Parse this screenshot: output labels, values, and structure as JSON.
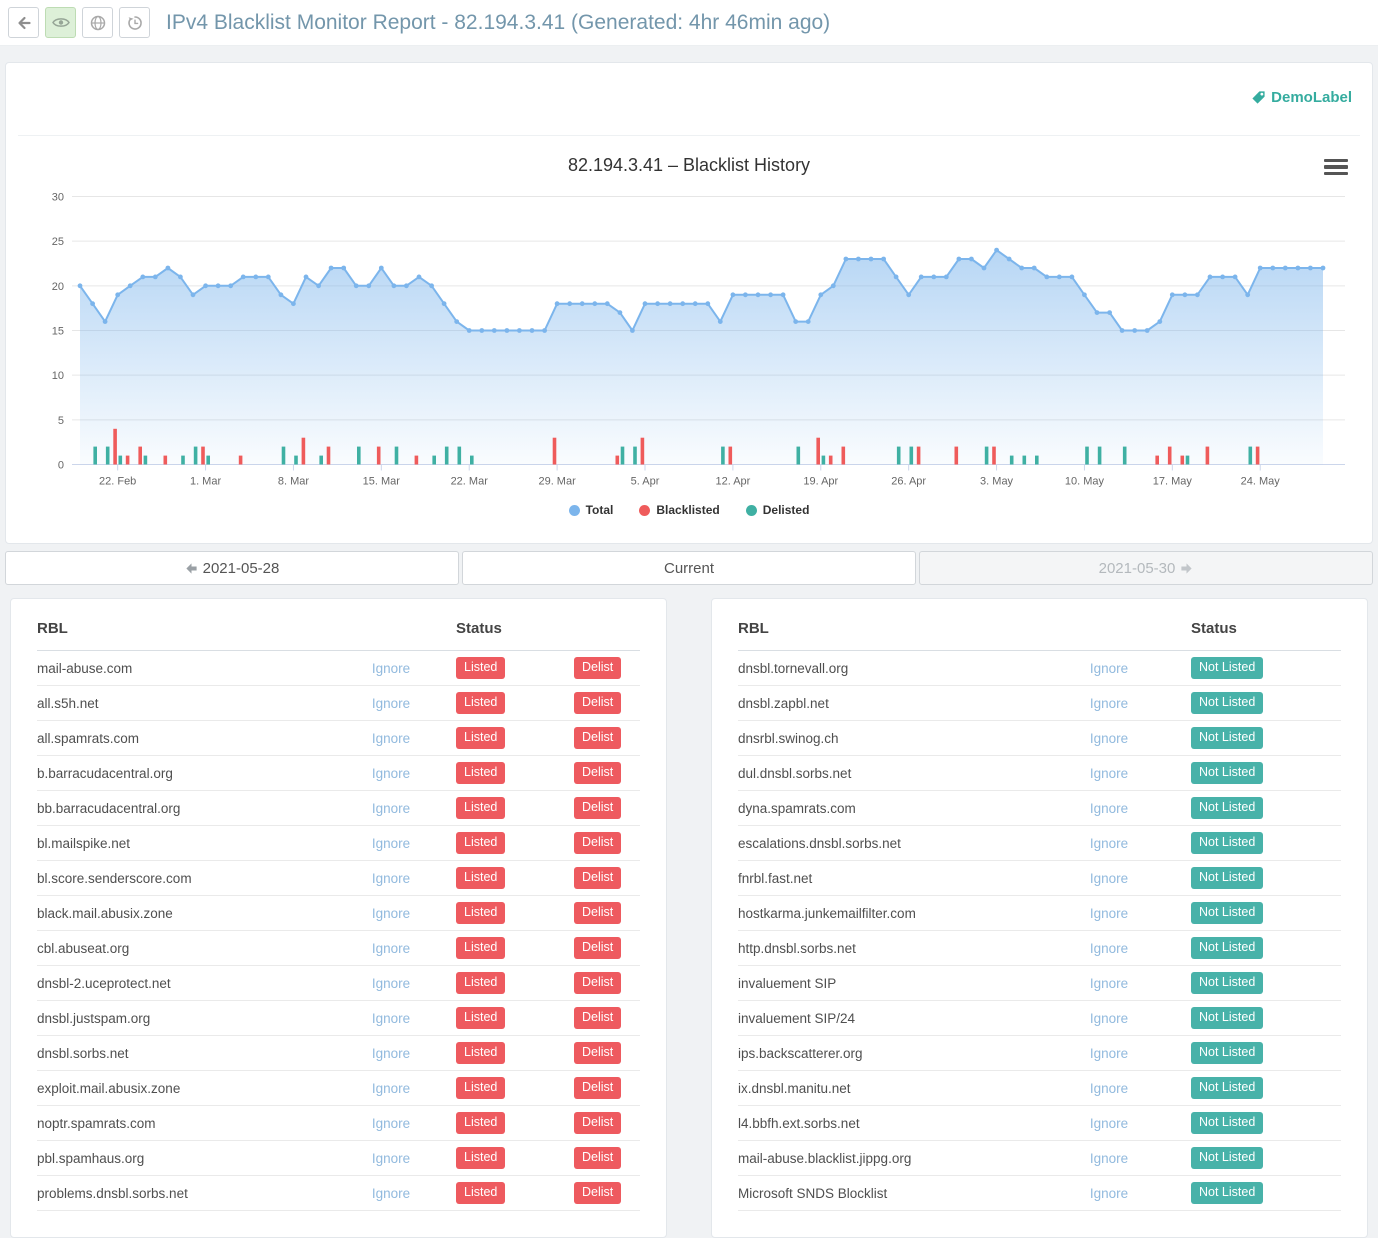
{
  "header": {
    "title": "IPv4 Blacklist Monitor Report - 82.194.3.41 (Generated: 4hr 46min ago)",
    "toolbar_buttons": [
      {
        "name": "back",
        "icon": "arrow-left-icon"
      },
      {
        "name": "view-report",
        "icon": "eye-icon",
        "active": true
      },
      {
        "name": "public-link",
        "icon": "globe-icon"
      },
      {
        "name": "history",
        "icon": "history-icon"
      }
    ]
  },
  "report_label": "DemoLabel",
  "chart_data": {
    "type": "area",
    "title": "82.194.3.41 – Blacklist History",
    "ylim": [
      0,
      30
    ],
    "y_ticks": [
      0,
      5,
      10,
      15,
      20,
      25,
      30
    ],
    "grid": "horizontal",
    "legend_position": "bottom",
    "x_tick_labels": [
      "22. Feb",
      "1. Mar",
      "8. Mar",
      "15. Mar",
      "22. Mar",
      "29. Mar",
      "5. Apr",
      "12. Apr",
      "19. Apr",
      "26. Apr",
      "3. May",
      "10. May",
      "17. May",
      "24. May"
    ],
    "x_tick_day_indices": [
      3,
      10,
      17,
      24,
      31,
      38,
      45,
      52,
      59,
      66,
      73,
      80,
      87,
      94
    ],
    "series": [
      {
        "name": "Total",
        "type": "area",
        "color": "#7cb5ec",
        "values": [
          20,
          18,
          16,
          19,
          20,
          21,
          21,
          22,
          21,
          19,
          20,
          20,
          20,
          21,
          21,
          21,
          19,
          18,
          21,
          20,
          22,
          22,
          20,
          20,
          22,
          20,
          20,
          21,
          20,
          18,
          16,
          15,
          15,
          15,
          15,
          15,
          15,
          15,
          18,
          18,
          18,
          18,
          18,
          17,
          15,
          18,
          18,
          18,
          18,
          18,
          18,
          16,
          19,
          19,
          19,
          19,
          19,
          16,
          16,
          19,
          20,
          23,
          23,
          23,
          23,
          21,
          19,
          21,
          21,
          21,
          23,
          23,
          22,
          24,
          23,
          22,
          22,
          21,
          21,
          21,
          19,
          17,
          17,
          15,
          15,
          15,
          16,
          19,
          19,
          19,
          21,
          21,
          21,
          19,
          22,
          22,
          22,
          22,
          22,
          22
        ]
      },
      {
        "name": "Blacklisted",
        "type": "column",
        "color": "#ef5b5b",
        "points": [
          [
            3,
            4
          ],
          [
            4,
            1
          ],
          [
            5,
            2
          ],
          [
            7,
            1
          ],
          [
            10,
            2
          ],
          [
            13,
            1
          ],
          [
            18,
            3
          ],
          [
            20,
            2
          ],
          [
            24,
            2
          ],
          [
            27,
            1
          ],
          [
            38,
            3
          ],
          [
            43,
            1
          ],
          [
            45,
            3
          ],
          [
            52,
            2
          ],
          [
            59,
            3
          ],
          [
            60,
            1
          ],
          [
            61,
            2
          ],
          [
            67,
            2
          ],
          [
            70,
            2
          ],
          [
            73,
            2
          ],
          [
            86,
            1
          ],
          [
            87,
            2
          ],
          [
            88,
            1
          ],
          [
            90,
            2
          ],
          [
            94,
            2
          ]
        ]
      },
      {
        "name": "Delisted",
        "type": "column",
        "color": "#3fb0a3",
        "points": [
          [
            1,
            2
          ],
          [
            2,
            2
          ],
          [
            3,
            1
          ],
          [
            5,
            1
          ],
          [
            8,
            1
          ],
          [
            9,
            2
          ],
          [
            10,
            1
          ],
          [
            16,
            2
          ],
          [
            17,
            1
          ],
          [
            19,
            1
          ],
          [
            22,
            2
          ],
          [
            25,
            2
          ],
          [
            28,
            1
          ],
          [
            29,
            2
          ],
          [
            30,
            2
          ],
          [
            31,
            1
          ],
          [
            43,
            2
          ],
          [
            44,
            2
          ],
          [
            51,
            2
          ],
          [
            57,
            2
          ],
          [
            59,
            1
          ],
          [
            65,
            2
          ],
          [
            66,
            2
          ],
          [
            72,
            2
          ],
          [
            74,
            1
          ],
          [
            75,
            1
          ],
          [
            76,
            1
          ],
          [
            80,
            2
          ],
          [
            81,
            2
          ],
          [
            83,
            2
          ],
          [
            88,
            1
          ],
          [
            93,
            2
          ]
        ]
      }
    ]
  },
  "date_nav": {
    "prev_label": "2021-05-28",
    "current_label": "Current",
    "next_label": "2021-05-30"
  },
  "tables": {
    "left": {
      "rbl_header": "RBL",
      "status_header": "Status",
      "ignore_label": "Ignore",
      "status_label": "Listed",
      "action_label": "Delist",
      "rows": [
        "mail-abuse.com",
        "all.s5h.net",
        "all.spamrats.com",
        "b.barracudacentral.org",
        "bb.barracudacentral.org",
        "bl.mailspike.net",
        "bl.score.senderscore.com",
        "black.mail.abusix.zone",
        "cbl.abuseat.org",
        "dnsbl-2.uceprotect.net",
        "dnsbl.justspam.org",
        "dnsbl.sorbs.net",
        "exploit.mail.abusix.zone",
        "noptr.spamrats.com",
        "pbl.spamhaus.org",
        "problems.dnsbl.sorbs.net"
      ]
    },
    "right": {
      "rbl_header": "RBL",
      "status_header": "Status",
      "ignore_label": "Ignore",
      "status_label": "Not Listed",
      "rows": [
        "dnsbl.tornevall.org",
        "dnsbl.zapbl.net",
        "dnsrbl.swinog.ch",
        "dul.dnsbl.sorbs.net",
        "dyna.spamrats.com",
        "escalations.dnsbl.sorbs.net",
        "fnrbl.fast.net",
        "hostkarma.junkemailfilter.com",
        "http.dnsbl.sorbs.net",
        "invaluement SIP",
        "invaluement SIP/24",
        "ips.backscatterer.org",
        "ix.dnsbl.manitu.net",
        "l4.bbfh.ext.sorbs.net",
        "mail-abuse.blacklist.jippg.org",
        "Microsoft SNDS Blocklist"
      ]
    }
  },
  "colors": {
    "accent_teal": "#35ac9f",
    "badge_red": "#ee5a5f",
    "badge_teal": "#48b2a9",
    "link_blue": "#92bade",
    "title_blue": "#7396ab",
    "series_total": "#7cb5ec",
    "series_blacklisted": "#ef5b5b",
    "series_delisted": "#3fb0a3"
  }
}
